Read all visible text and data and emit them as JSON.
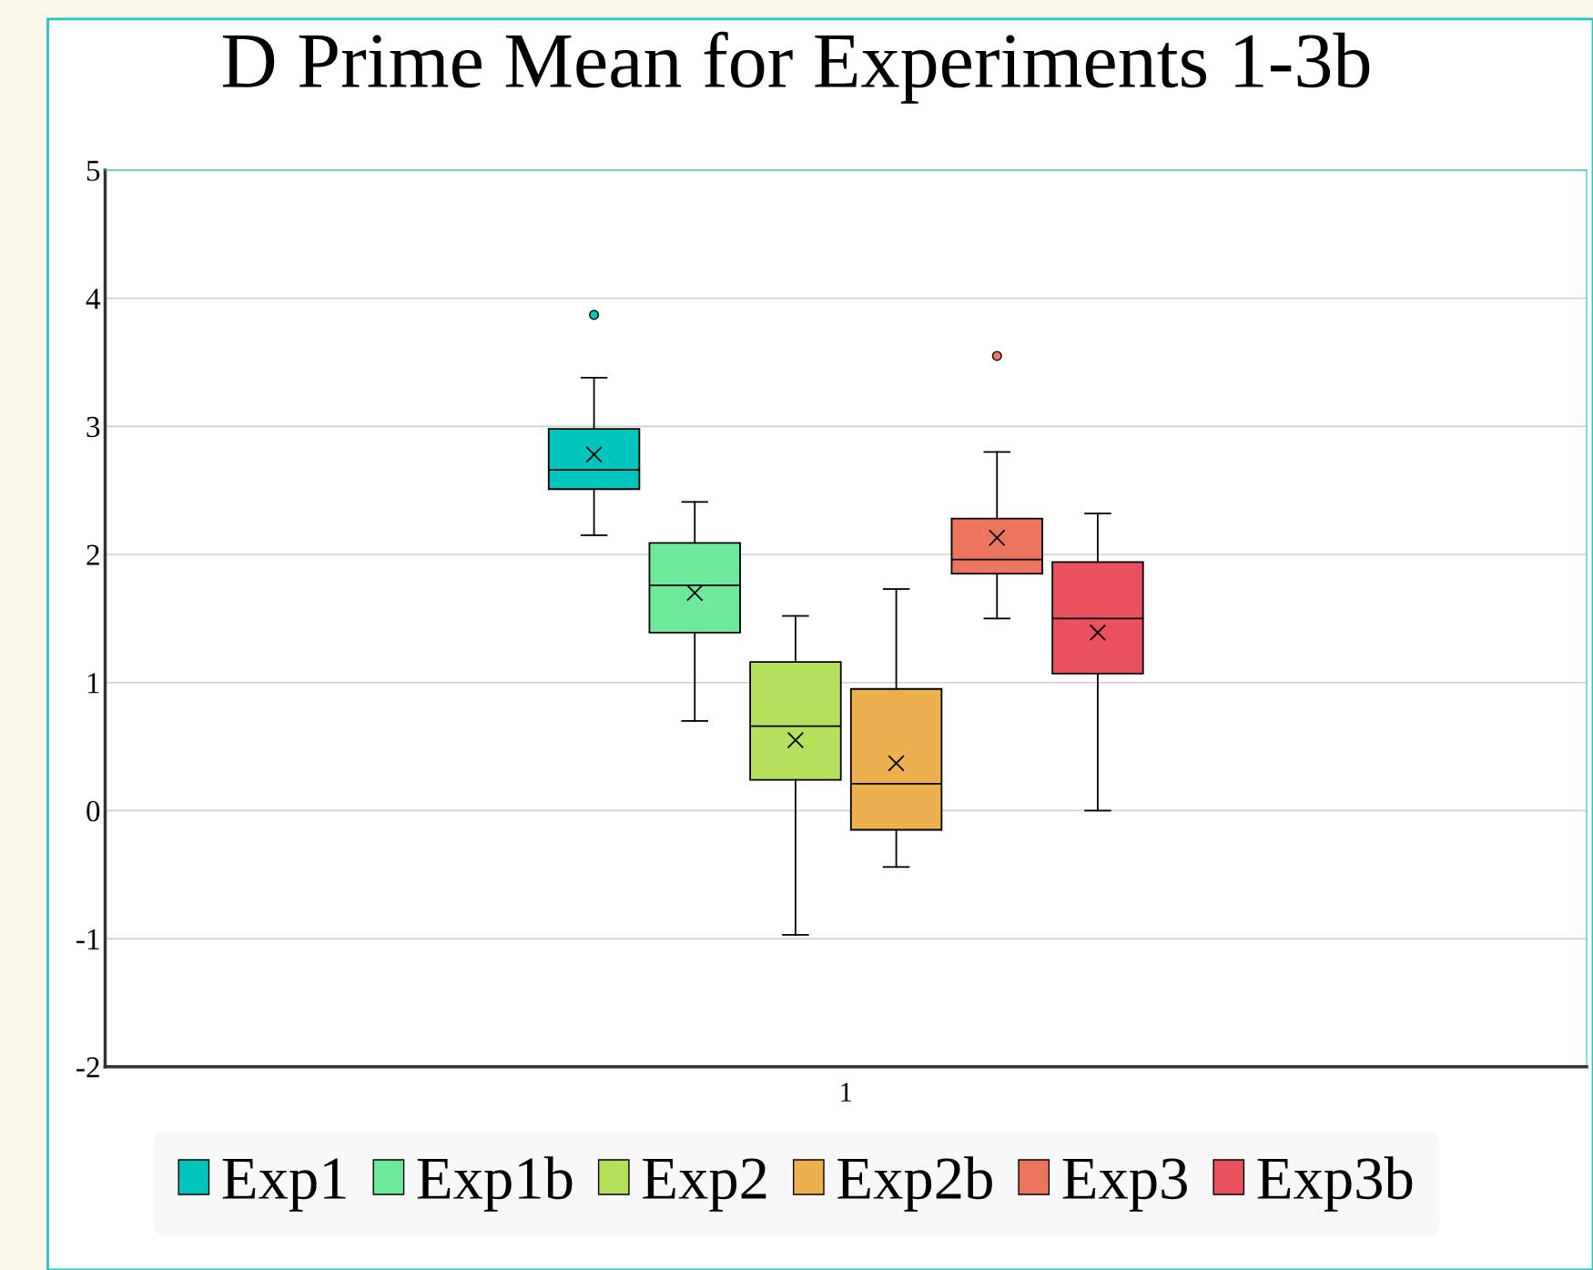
{
  "chart_data": {
    "type": "box",
    "title": "D Prime Mean for Experiments 1-3b",
    "categories": [
      "1"
    ],
    "series": [
      {
        "name": "Exp1",
        "color": "#00c5bd",
        "boxes": [
          {
            "low": 2.15,
            "q1": 2.51,
            "median": 2.66,
            "q3": 2.98,
            "high": 3.38,
            "mean": 2.78,
            "outliers": [
              3.87
            ]
          }
        ]
      },
      {
        "name": "Exp1b",
        "color": "#6ee89a",
        "boxes": [
          {
            "low": 0.7,
            "q1": 1.39,
            "median": 1.76,
            "q3": 2.09,
            "high": 2.41,
            "mean": 1.7
          }
        ]
      },
      {
        "name": "Exp2",
        "color": "#b5e05c",
        "boxes": [
          {
            "low": -0.97,
            "q1": 0.24,
            "median": 0.66,
            "q3": 1.16,
            "high": 1.52,
            "mean": 0.55
          }
        ]
      },
      {
        "name": "Exp2b",
        "color": "#ecb04e",
        "boxes": [
          {
            "low": -0.44,
            "q1": -0.15,
            "median": 0.21,
            "q3": 0.95,
            "high": 1.73,
            "mean": 0.37
          }
        ]
      },
      {
        "name": "Exp3",
        "color": "#ec7560",
        "boxes": [
          {
            "low": 1.5,
            "q1": 1.85,
            "median": 1.96,
            "q3": 2.28,
            "high": 2.8,
            "mean": 2.13,
            "outliers": [
              3.55
            ]
          }
        ]
      },
      {
        "name": "Exp3b",
        "color": "#ea515e",
        "boxes": [
          {
            "low": 0,
            "q1": 1.07,
            "median": 1.5,
            "q3": 1.94,
            "high": 2.32,
            "mean": 1.39
          }
        ]
      }
    ],
    "ylim": [
      -2,
      5
    ],
    "yticks": [
      -2,
      -1,
      0,
      1,
      2,
      3,
      4,
      5
    ],
    "grid": "y",
    "legend": "bottom"
  }
}
